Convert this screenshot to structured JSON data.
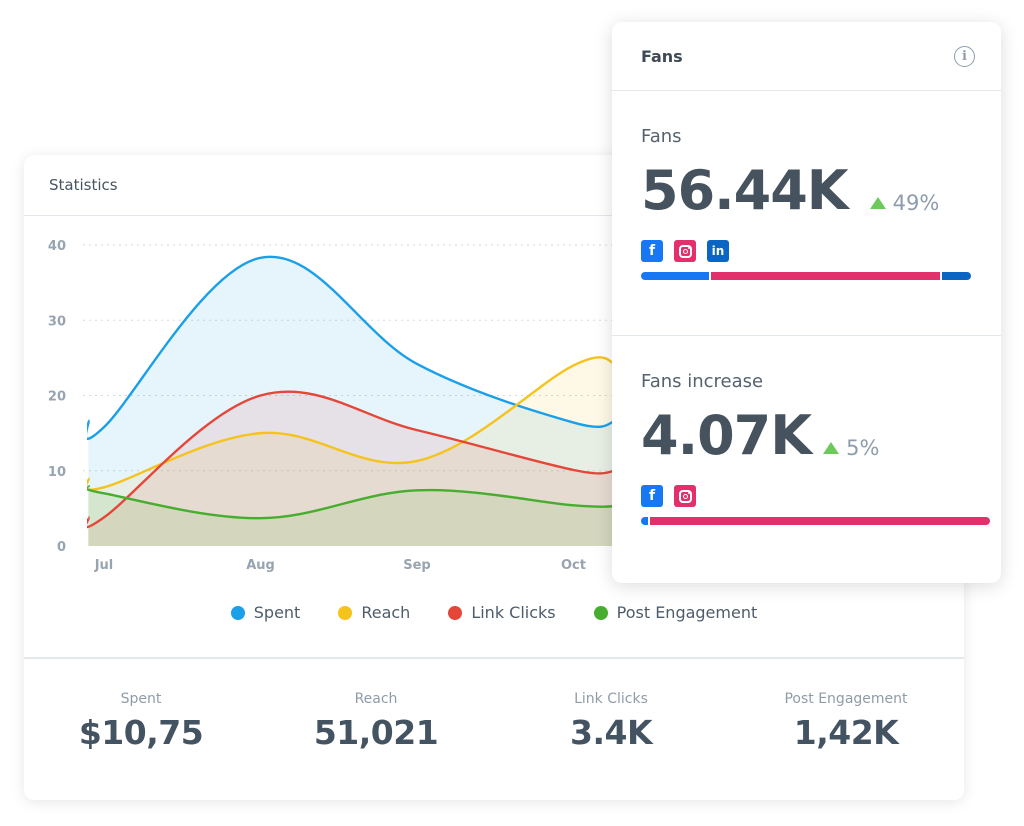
{
  "statistics": {
    "title": "Statistics",
    "legend": [
      {
        "label": "Spent",
        "color": "#1a9fe8"
      },
      {
        "label": "Reach",
        "color": "#f6c21c"
      },
      {
        "label": "Link Clicks",
        "color": "#e5463a"
      },
      {
        "label": "Post Engagement",
        "color": "#47ad2e"
      }
    ],
    "summary": [
      {
        "label": "Spent",
        "value": "$10,75"
      },
      {
        "label": "Reach",
        "value": "51,021"
      },
      {
        "label": "Link Clicks",
        "value": "3.4K"
      },
      {
        "label": "Post Engagement",
        "value": "1,42K"
      }
    ]
  },
  "chart_data": {
    "type": "area",
    "title": "Statistics",
    "xlabel": "",
    "ylabel": "",
    "categories": [
      "Jul",
      "Aug",
      "Sep",
      "Oct"
    ],
    "x": [
      -0.1,
      0,
      1,
      2,
      3,
      3.27
    ],
    "ylim": [
      0,
      40
    ],
    "yticks": [
      0,
      10,
      20,
      30,
      40
    ],
    "grid": true,
    "legend_position": "bottom",
    "series": [
      {
        "name": "Spent",
        "color": "#1a9fe8",
        "values": [
          16.7,
          15.8,
          38.3,
          24.2,
          16.4,
          16.6
        ]
      },
      {
        "name": "Reach",
        "color": "#f6c21c",
        "values": [
          9.0,
          7.8,
          15.0,
          11.3,
          24.0,
          24.2
        ]
      },
      {
        "name": "Link Clicks",
        "color": "#e5463a",
        "values": [
          3.8,
          3.8,
          20.0,
          15.4,
          10.1,
          10.0
        ]
      },
      {
        "name": "Post Engagement",
        "color": "#47ad2e",
        "values": [
          8.0,
          7.0,
          3.7,
          7.4,
          5.4,
          5.3
        ]
      }
    ]
  },
  "fans": {
    "title": "Fans",
    "info_icon": "info-icon",
    "sections": [
      {
        "label": "Fans",
        "value": "56.44K",
        "delta": "49%",
        "delta_direction": "up",
        "networks": [
          {
            "name": "facebook",
            "glyph": "f",
            "color": "#1877f2",
            "share": 0.21
          },
          {
            "name": "instagram",
            "glyph": "ig",
            "color": "#e1306c",
            "share": 0.7
          },
          {
            "name": "linkedin",
            "glyph": "in",
            "color": "#0a66c2",
            "share": 0.09
          }
        ]
      },
      {
        "label": "Fans increase",
        "value": "4.07K",
        "delta": "5%",
        "delta_direction": "up",
        "networks": [
          {
            "name": "facebook",
            "glyph": "f",
            "color": "#1877f2",
            "share": 0.02
          },
          {
            "name": "instagram",
            "glyph": "ig",
            "color": "#e1306c",
            "share": 0.98
          }
        ]
      }
    ]
  }
}
